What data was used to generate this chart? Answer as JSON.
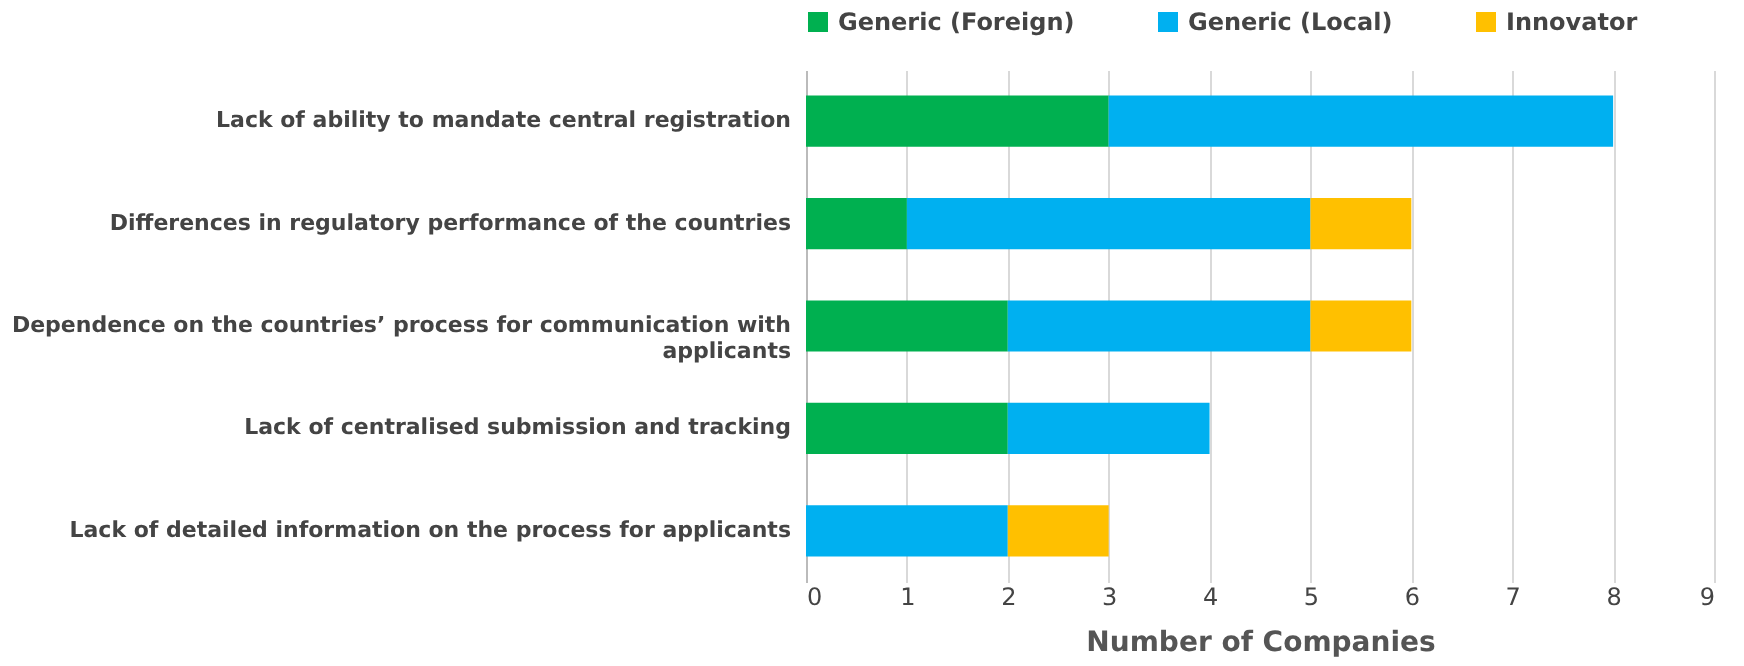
{
  "chart_data": {
    "type": "bar",
    "orientation": "horizontal",
    "stacked": true,
    "categories": [
      "Lack of ability to mandate central registration",
      "Differences in regulatory performance of the countries",
      "Dependence on the countries’ process for communication with applicants",
      "Lack of centralised submission and tracking",
      "Lack of detailed information on the process for applicants"
    ],
    "series": [
      {
        "name": "Generic (Foreign)",
        "color": "#00b050",
        "values": [
          3,
          1,
          2,
          2,
          0
        ]
      },
      {
        "name": "Generic (Local)",
        "color": "#00b0f0",
        "values": [
          5,
          4,
          3,
          2,
          2
        ]
      },
      {
        "name": "Innovator",
        "color": "#ffc000",
        "values": [
          0,
          1,
          1,
          0,
          1
        ]
      }
    ],
    "xlabel": "Number of Companies",
    "xlim": [
      0,
      9
    ],
    "xticks": [
      0,
      1,
      2,
      3,
      4,
      5,
      6,
      7,
      8,
      9
    ],
    "grid": "x",
    "legend": "top"
  }
}
